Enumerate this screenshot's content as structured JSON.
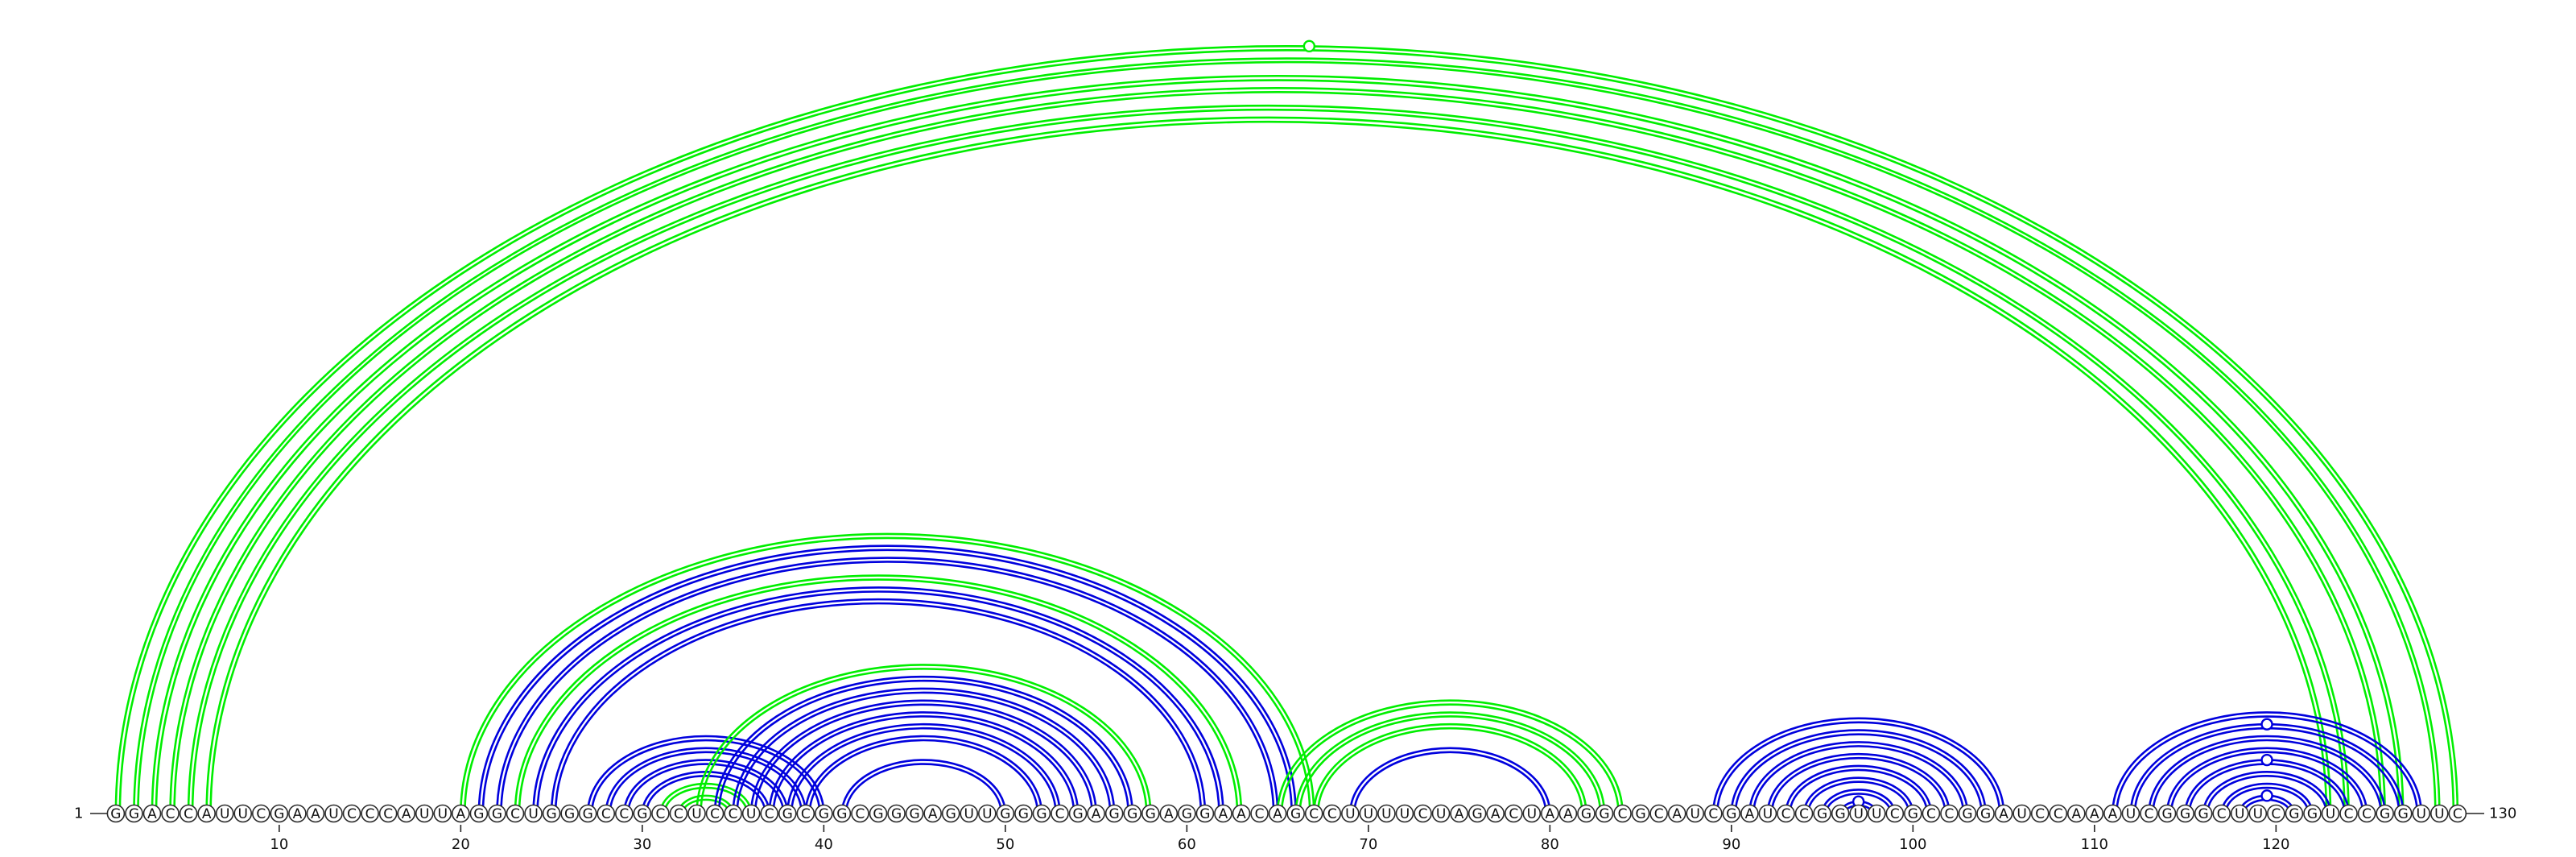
{
  "diagram": {
    "sequence": "GGACCAUUCGAAUCCCAUUAGGCUGGGCCGCCUCCUCGCGGCGGGAGUUGGGCGAGGGAGGAACAGCCUUUUCUAGACUAAGGCGCAUCGAUCCGGUUCGCCGGAUCCAAAUCGGGCUUCGGUCCGGUUC",
    "start_label": "1",
    "end_label": "130",
    "tick_labels": [
      "10",
      "20",
      "30",
      "40",
      "50",
      "60",
      "70",
      "80",
      "90",
      "100",
      "110",
      "120"
    ],
    "colors": {
      "group_a": "#00ee00",
      "group_b": "#0000dd"
    },
    "arcs": [
      {
        "i": 1,
        "j": 130,
        "color": "group_a"
      },
      {
        "i": 2,
        "j": 129,
        "color": "group_a"
      },
      {
        "i": 3,
        "j": 127,
        "color": "group_a"
      },
      {
        "i": 4,
        "j": 126,
        "color": "group_a"
      },
      {
        "i": 5,
        "j": 124,
        "color": "group_a"
      },
      {
        "i": 6,
        "j": 123,
        "color": "group_a"
      },
      {
        "i": 20,
        "j": 67,
        "color": "group_a"
      },
      {
        "i": 21,
        "j": 66,
        "color": "group_b"
      },
      {
        "i": 22,
        "j": 65,
        "color": "group_b"
      },
      {
        "i": 23,
        "j": 63,
        "color": "group_a"
      },
      {
        "i": 24,
        "j": 62,
        "color": "group_b"
      },
      {
        "i": 25,
        "j": 61,
        "color": "group_b"
      },
      {
        "i": 27,
        "j": 40,
        "color": "group_b"
      },
      {
        "i": 28,
        "j": 39,
        "color": "group_b"
      },
      {
        "i": 29,
        "j": 38,
        "color": "group_b"
      },
      {
        "i": 30,
        "j": 37,
        "color": "group_b"
      },
      {
        "i": 31,
        "j": 36,
        "color": "group_a"
      },
      {
        "i": 32,
        "j": 35,
        "color": "group_a"
      },
      {
        "i": 33,
        "j": 58,
        "color": "group_a"
      },
      {
        "i": 34,
        "j": 57,
        "color": "group_b"
      },
      {
        "i": 35,
        "j": 56,
        "color": "group_b"
      },
      {
        "i": 36,
        "j": 55,
        "color": "group_b"
      },
      {
        "i": 37,
        "j": 54,
        "color": "group_b"
      },
      {
        "i": 38,
        "j": 53,
        "color": "group_b"
      },
      {
        "i": 39,
        "j": 52,
        "color": "group_b"
      },
      {
        "i": 41,
        "j": 50,
        "color": "group_b"
      },
      {
        "i": 65,
        "j": 84,
        "color": "group_a"
      },
      {
        "i": 66,
        "j": 83,
        "color": "group_a"
      },
      {
        "i": 67,
        "j": 82,
        "color": "group_a"
      },
      {
        "i": 69,
        "j": 80,
        "color": "group_b"
      },
      {
        "i": 89,
        "j": 105,
        "color": "group_b"
      },
      {
        "i": 90,
        "j": 104,
        "color": "group_b"
      },
      {
        "i": 91,
        "j": 103,
        "color": "group_b"
      },
      {
        "i": 92,
        "j": 102,
        "color": "group_b"
      },
      {
        "i": 93,
        "j": 101,
        "color": "group_b"
      },
      {
        "i": 94,
        "j": 100,
        "color": "group_b"
      },
      {
        "i": 95,
        "j": 99,
        "color": "group_b"
      },
      {
        "i": 96,
        "j": 98,
        "color": "group_b"
      },
      {
        "i": 111,
        "j": 128,
        "color": "group_b"
      },
      {
        "i": 112,
        "j": 127,
        "color": "group_b"
      },
      {
        "i": 113,
        "j": 126,
        "color": "group_b"
      },
      {
        "i": 114,
        "j": 125,
        "color": "group_b"
      },
      {
        "i": 115,
        "j": 124,
        "color": "group_b"
      },
      {
        "i": 116,
        "j": 123,
        "color": "group_b"
      },
      {
        "i": 117,
        "j": 122,
        "color": "group_b"
      },
      {
        "i": 118,
        "j": 121,
        "color": "group_b"
      }
    ],
    "markers": [
      {
        "arc": 0,
        "color": "group_a"
      },
      {
        "arc": 37,
        "color": "group_b"
      },
      {
        "arc": 39,
        "color": "group_b"
      },
      {
        "arc": 42,
        "color": "group_b"
      },
      {
        "arc": 45,
        "color": "group_b"
      }
    ]
  }
}
